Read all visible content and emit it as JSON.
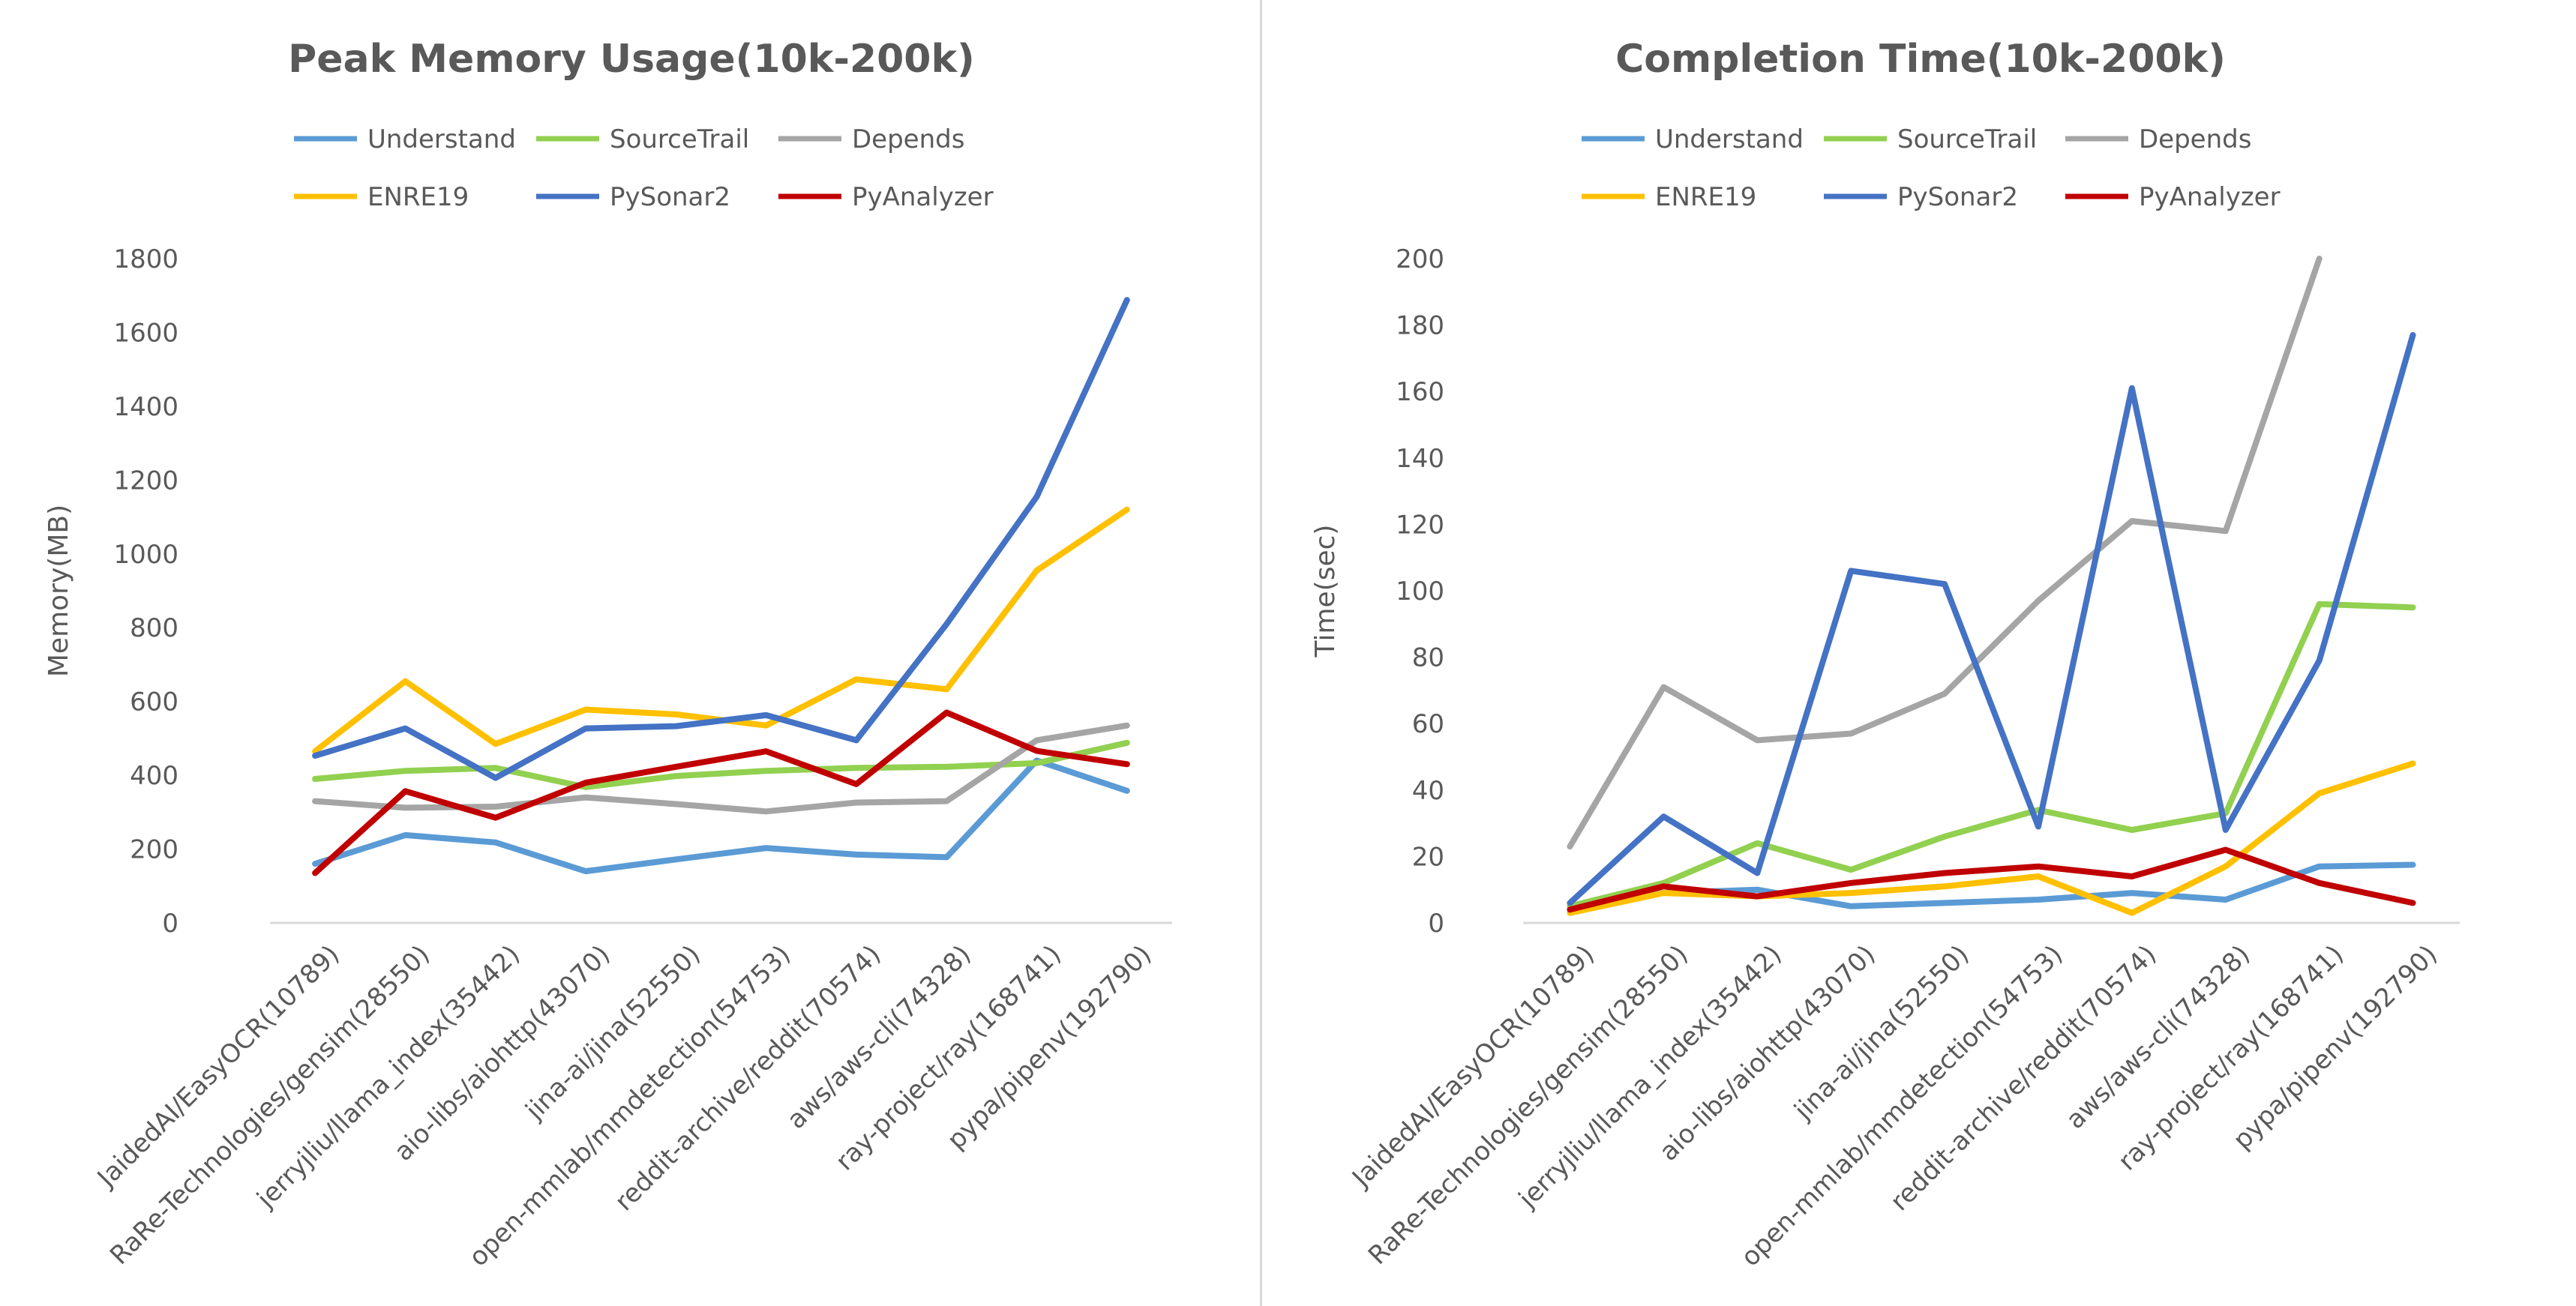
{
  "chart_data": [
    {
      "type": "line",
      "title": "Peak Memory Usage(10k-200k)",
      "xlabel": "",
      "ylabel": "Memory(MB)",
      "ylim": [
        0,
        1800
      ],
      "yticks": [
        0,
        200,
        400,
        600,
        800,
        1000,
        1200,
        1400,
        1600,
        1800
      ],
      "grid": false,
      "legend_position": "top",
      "categories": [
        "JaidedAI/EasyOCR(10789)",
        "RaRe-Technologies/gensim(28550)",
        "jerryjliu/llama_index(35442)",
        "aio-libs/aiohttp(43070)",
        "jina-ai/jina(52550)",
        "open-mmlab/mmdetection(54753)",
        "reddit-archive/reddit(70574)",
        "aws/aws-cli(74328)",
        "ray-project/ray(168741)",
        "pypa/pipenv(192790)"
      ],
      "series": [
        {
          "name": "Understand",
          "color": "#5B9BD5",
          "values": [
            160,
            238,
            218,
            140,
            172,
            203,
            185,
            178,
            440,
            358
          ]
        },
        {
          "name": "SourceTrail",
          "color": "#92D050",
          "values": [
            390,
            412,
            420,
            368,
            398,
            412,
            420,
            423,
            433,
            488
          ]
        },
        {
          "name": "Depends",
          "color": "#A5A5A5",
          "values": [
            330,
            312,
            315,
            340,
            322,
            302,
            326,
            330,
            495,
            535
          ]
        },
        {
          "name": "ENRE19",
          "color": "#FFC000",
          "values": [
            465,
            655,
            485,
            578,
            565,
            535,
            660,
            633,
            955,
            1120
          ]
        },
        {
          "name": "PySonar2",
          "color": "#4472C4",
          "values": [
            453,
            527,
            393,
            527,
            533,
            563,
            495,
            810,
            1155,
            1688
          ]
        },
        {
          "name": "PyAnalyzer",
          "color": "#C00000",
          "values": [
            135,
            357,
            285,
            380,
            423,
            465,
            376,
            570,
            466,
            430
          ]
        }
      ]
    },
    {
      "type": "line",
      "title": "Completion Time(10k-200k)",
      "xlabel": "",
      "ylabel": "Time(sec)",
      "ylim": [
        0,
        200
      ],
      "yticks": [
        0,
        20,
        40,
        60,
        80,
        100,
        120,
        140,
        160,
        180,
        200
      ],
      "grid": false,
      "legend_position": "top",
      "categories": [
        "JaidedAI/EasyOCR(10789)",
        "RaRe-Technologies/gensim(28550)",
        "jerryjliu/llama_index(35442)",
        "aio-libs/aiohttp(43070)",
        "jina-ai/jina(52550)",
        "open-mmlab/mmdetection(54753)",
        "reddit-archive/reddit(70574)",
        "aws/aws-cli(74328)",
        "ray-project/ray(168741)",
        "pypa/pipenv(192790)"
      ],
      "series": [
        {
          "name": "Understand",
          "color": "#5B9BD5",
          "values": [
            5,
            9,
            10,
            5,
            6,
            7,
            9,
            7,
            17,
            17.5
          ]
        },
        {
          "name": "SourceTrail",
          "color": "#92D050",
          "values": [
            5,
            12,
            24,
            16,
            26,
            34,
            28,
            33,
            96,
            95
          ]
        },
        {
          "name": "Depends",
          "color": "#A5A5A5",
          "values": [
            23,
            71,
            55,
            57,
            69,
            97,
            121,
            118,
            200,
            null
          ]
        },
        {
          "name": "ENRE19",
          "color": "#FFC000",
          "values": [
            3,
            9,
            8,
            9,
            11,
            14,
            3,
            17,
            39,
            48
          ]
        },
        {
          "name": "PySonar2",
          "color": "#4472C4",
          "values": [
            6,
            32,
            15,
            106,
            102,
            29,
            161,
            28,
            79,
            177
          ]
        },
        {
          "name": "PyAnalyzer",
          "color": "#C00000",
          "values": [
            4,
            11,
            8,
            12,
            15,
            17,
            14,
            22,
            12,
            6
          ]
        }
      ]
    }
  ]
}
